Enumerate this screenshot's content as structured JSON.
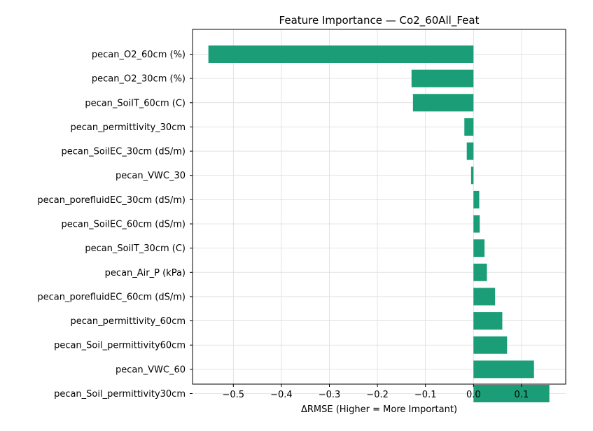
{
  "chart_data": {
    "type": "bar",
    "orientation": "horizontal",
    "title": "Feature Importance — Co2_60All_Feat",
    "xlabel": "ΔRMSE (Higher = More Important)",
    "ylabel": "",
    "categories": [
      "pecan_O2_60cm (%)",
      "pecan_O2_30cm (%)",
      "pecan_SoilT_60cm (C)",
      "pecan_permittivity_30cm",
      "pecan_SoilEC_30cm (dS/m)",
      "pecan_VWC_30",
      "pecan_porefluidEC_30cm (dS/m)",
      "pecan_SoilEC_60cm (dS/m)",
      "pecan_SoilT_30cm (C)",
      "pecan_Air_P (kPa)",
      "pecan_porefluidEC_60cm (dS/m)",
      "pecan_permittivity_60cm",
      "pecan_Soil_permittivity60cm",
      "pecan_VWC_60",
      "pecan_Soil_permittivity30cm"
    ],
    "values": [
      -0.552,
      -0.129,
      -0.126,
      -0.019,
      -0.014,
      -0.005,
      0.012,
      0.013,
      0.023,
      0.028,
      0.045,
      0.06,
      0.07,
      0.126,
      0.158
    ],
    "xlim": [
      -0.585,
      0.192
    ],
    "xticks": [
      "−0.5",
      "−0.4",
      "−0.3",
      "−0.2",
      "−0.1",
      "0.0",
      "0.1"
    ],
    "xtick_values": [
      -0.5,
      -0.4,
      -0.3,
      -0.2,
      -0.1,
      0.0,
      0.1
    ],
    "grid": true,
    "bar_color": "#1b9e77"
  }
}
